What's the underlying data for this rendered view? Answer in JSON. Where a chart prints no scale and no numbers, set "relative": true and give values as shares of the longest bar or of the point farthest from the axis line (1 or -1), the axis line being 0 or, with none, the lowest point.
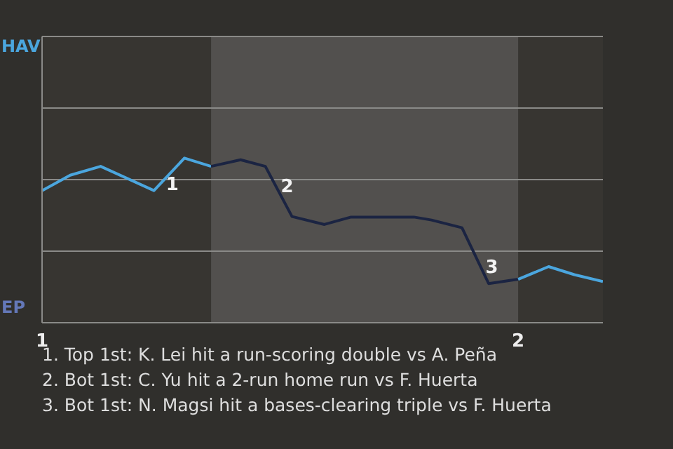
{
  "chart_data": {
    "type": "line",
    "relative": true,
    "xlim": [
      1,
      2.178
    ],
    "xticks": [
      1,
      2
    ],
    "marker": "none",
    "line_style": "solid",
    "ref_lines": [
      {
        "axis": "y",
        "value": 0.435,
        "color": "#8a8a88"
      },
      {
        "axis": "y",
        "value": 0.87,
        "color": "#8a8a88"
      },
      {
        "axis": "y",
        "value": 1.304,
        "color": "#8a8a88"
      },
      {
        "axis": "y",
        "value": 1.739,
        "color": "#8a8a88"
      }
    ],
    "series": [
      {
        "color": "#4ba6de",
        "x": [
          1,
          1.059,
          1.123,
          1.235,
          1.299,
          1.355
        ],
        "values": [
          0.802,
          0.896,
          0.95,
          0.803,
          1,
          0.95
        ]
      },
      {
        "color": "#1b2442",
        "x": [
          1.355,
          1.417,
          1.469,
          1.525,
          1.593,
          1.649,
          1.781,
          1.818,
          1.882,
          1.938,
          2
        ],
        "values": [
          0.95,
          0.99,
          0.95,
          0.645,
          0.597,
          0.642,
          0.642,
          0.624,
          0.577,
          0.238,
          0.264
        ]
      },
      {
        "color": "#4ba6de",
        "x": [
          2,
          2.064,
          2.118,
          2.178
        ],
        "values": [
          0.264,
          0.341,
          0.292,
          0.25
        ]
      }
    ],
    "bands": [
      {
        "axis": "x",
        "from": 1.355,
        "to": 2,
        "color": "#52504e"
      }
    ],
    "annotations": [
      "HAV",
      "EP",
      {
        "text": "1",
        "x": 1.25,
        "y": 0.843
      },
      {
        "text": "2",
        "x": 1.491,
        "y": 0.83
      },
      {
        "text": "3",
        "x": 1.921,
        "y": 0.341
      },
      "1. Top 1st: K. Lei hit a run-scoring double vs A. Peña",
      "2. Bot 1st: C. Yu hit a 2-run home run vs F. Huerta",
      "3. Bot 1st: N. Magsi hit a bases-clearing triple vs F. Huerta"
    ]
  }
}
